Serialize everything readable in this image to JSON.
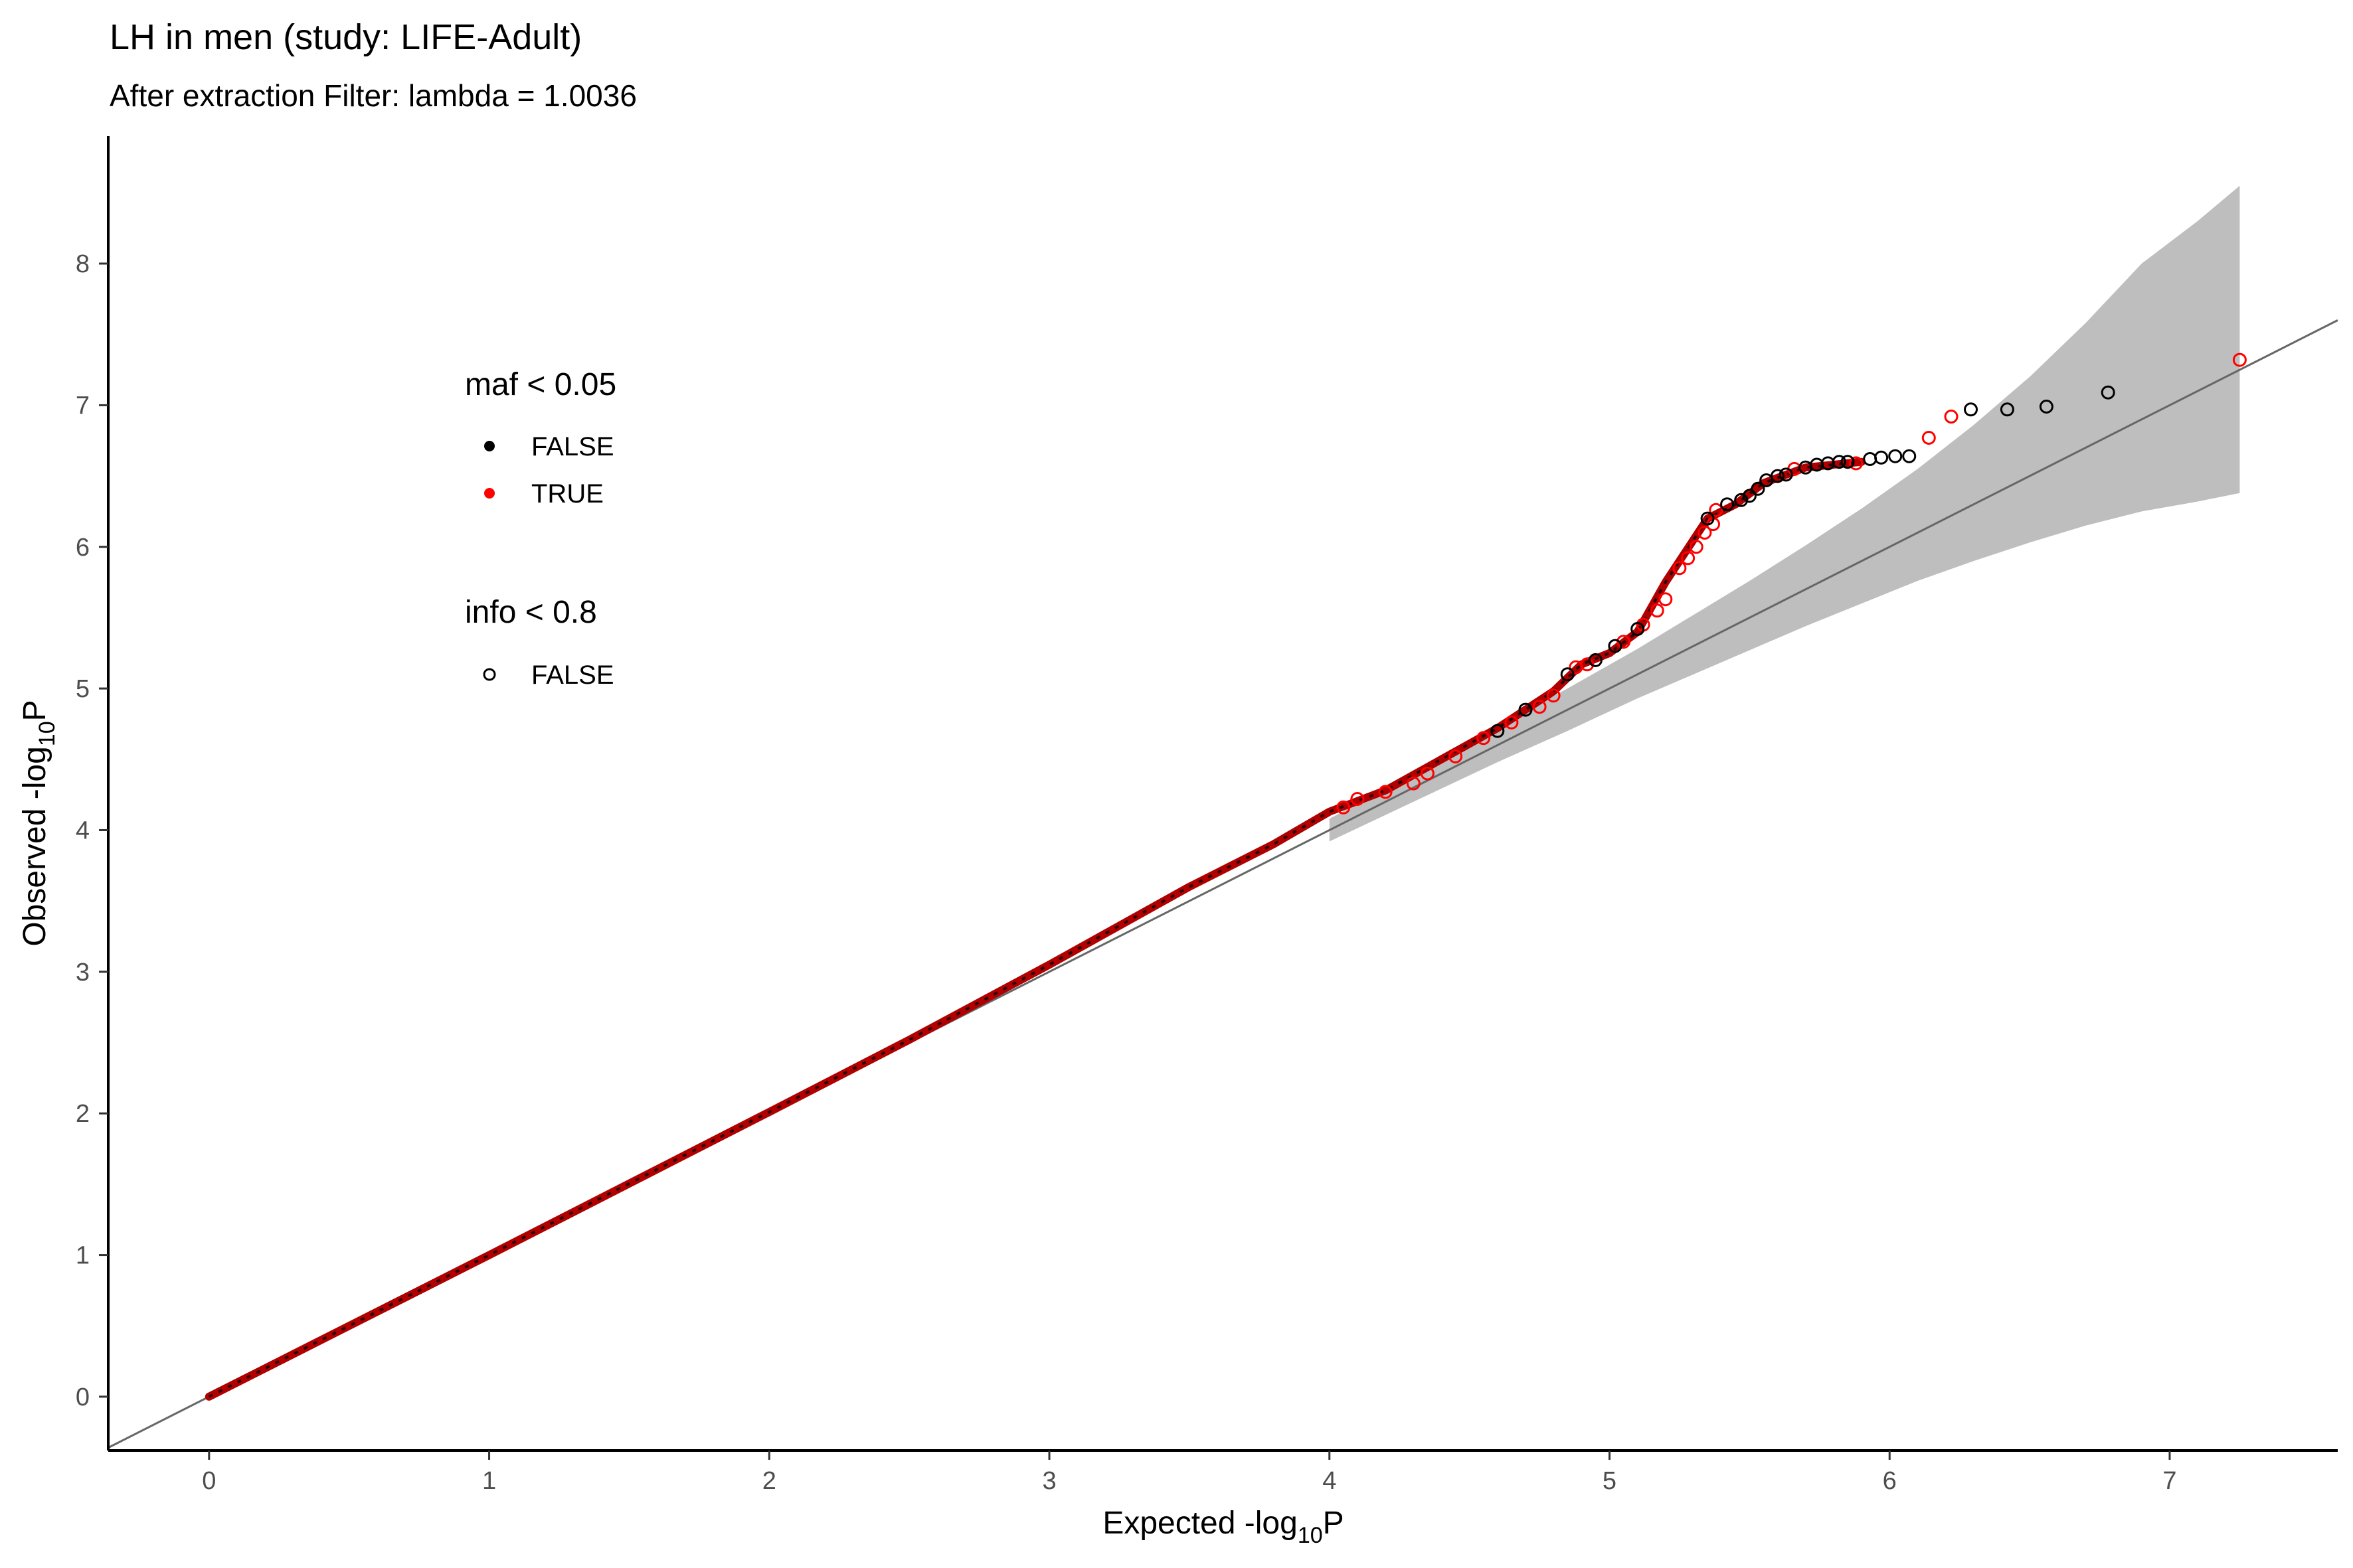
{
  "chart_data": {
    "type": "scatter",
    "title": "LH in men (study: LIFE-Adult)",
    "subtitle": "After extraction Filter: lambda =  1.0036",
    "xlabel": "Expected -log10P",
    "xlabel_main": "Expected -log",
    "xlabel_sub": "10",
    "xlabel_tail": "P",
    "ylabel": "Observed -log10P",
    "ylabel_main": "Observed -log",
    "ylabel_sub": "10",
    "ylabel_tail": "P",
    "xlim": [
      -0.36,
      7.6
    ],
    "ylim": [
      -0.38,
      8.9
    ],
    "xticks": [
      0,
      1,
      2,
      3,
      4,
      5,
      6,
      7
    ],
    "yticks": [
      0,
      1,
      2,
      3,
      4,
      5,
      6,
      7,
      8
    ],
    "grid": false,
    "reference_line": {
      "slope": 1.0,
      "intercept": 0.0,
      "color": "#666666"
    },
    "confidence_band": {
      "color": "#bebebe",
      "x": [
        4.0,
        4.3,
        4.6,
        4.85,
        5.1,
        5.3,
        5.5,
        5.7,
        5.9,
        6.1,
        6.3,
        6.5,
        6.7,
        6.9,
        7.1,
        7.25
      ],
      "upper": [
        4.08,
        4.4,
        4.73,
        5.0,
        5.28,
        5.52,
        5.76,
        6.01,
        6.27,
        6.55,
        6.86,
        7.2,
        7.58,
        8.0,
        8.3,
        8.55
      ],
      "lower": [
        3.92,
        4.2,
        4.48,
        4.7,
        4.93,
        5.1,
        5.27,
        5.44,
        5.6,
        5.76,
        5.9,
        6.03,
        6.15,
        6.25,
        6.32,
        6.38
      ]
    },
    "legend": {
      "placement": "top-left inside plot",
      "maf": {
        "title": "maf < 0.05",
        "entries": [
          {
            "label": "FALSE",
            "color": "#000000"
          },
          {
            "label": "TRUE",
            "color": "#ff0000"
          }
        ]
      },
      "info": {
        "title": "info < 0.8",
        "entries": [
          {
            "label": "FALSE",
            "shape": "open circle"
          }
        ]
      }
    },
    "curve_trend": [
      [
        0.0,
        0.0
      ],
      [
        1.0,
        1.0
      ],
      [
        2.0,
        2.01
      ],
      [
        2.5,
        2.52
      ],
      [
        3.0,
        3.05
      ],
      [
        3.5,
        3.6
      ],
      [
        3.8,
        3.9
      ],
      [
        4.0,
        4.13
      ],
      [
        4.2,
        4.28
      ],
      [
        4.4,
        4.5
      ],
      [
        4.6,
        4.72
      ],
      [
        4.8,
        4.98
      ],
      [
        4.9,
        5.17
      ],
      [
        5.0,
        5.25
      ],
      [
        5.1,
        5.4
      ],
      [
        5.2,
        5.75
      ],
      [
        5.3,
        6.05
      ],
      [
        5.35,
        6.2
      ],
      [
        5.45,
        6.3
      ],
      [
        5.55,
        6.45
      ],
      [
        5.7,
        6.56
      ],
      [
        5.9,
        6.6
      ]
    ],
    "series": [
      {
        "name": "TRUE",
        "color": "#ff0000",
        "points": [
          [
            4.05,
            4.16
          ],
          [
            4.1,
            4.22
          ],
          [
            4.2,
            4.27
          ],
          [
            4.3,
            4.33
          ],
          [
            4.35,
            4.4
          ],
          [
            4.45,
            4.52
          ],
          [
            4.55,
            4.65
          ],
          [
            4.65,
            4.76
          ],
          [
            4.75,
            4.87
          ],
          [
            4.8,
            4.95
          ],
          [
            4.88,
            5.15
          ],
          [
            4.92,
            5.17
          ],
          [
            5.05,
            5.33
          ],
          [
            5.12,
            5.45
          ],
          [
            5.17,
            5.55
          ],
          [
            5.2,
            5.63
          ],
          [
            5.25,
            5.85
          ],
          [
            5.28,
            5.92
          ],
          [
            5.31,
            6.0
          ],
          [
            5.34,
            6.1
          ],
          [
            5.37,
            6.16
          ],
          [
            5.38,
            6.26
          ],
          [
            5.66,
            6.55
          ],
          [
            5.88,
            6.59
          ],
          [
            6.14,
            6.77
          ],
          [
            6.22,
            6.92
          ],
          [
            7.25,
            7.32
          ]
        ]
      },
      {
        "name": "FALSE",
        "color": "#000000",
        "points": [
          [
            4.6,
            4.7
          ],
          [
            4.7,
            4.85
          ],
          [
            4.85,
            5.1
          ],
          [
            4.95,
            5.2
          ],
          [
            5.02,
            5.3
          ],
          [
            5.1,
            5.42
          ],
          [
            5.35,
            6.2
          ],
          [
            5.42,
            6.3
          ],
          [
            5.47,
            6.33
          ],
          [
            5.5,
            6.36
          ],
          [
            5.53,
            6.41
          ],
          [
            5.56,
            6.47
          ],
          [
            5.6,
            6.5
          ],
          [
            5.63,
            6.51
          ],
          [
            5.7,
            6.56
          ],
          [
            5.74,
            6.58
          ],
          [
            5.78,
            6.59
          ],
          [
            5.82,
            6.6
          ],
          [
            5.85,
            6.6
          ],
          [
            5.93,
            6.62
          ],
          [
            5.97,
            6.63
          ],
          [
            6.02,
            6.64
          ],
          [
            6.07,
            6.64
          ],
          [
            6.29,
            6.97
          ],
          [
            6.42,
            6.97
          ],
          [
            6.56,
            6.99
          ],
          [
            6.78,
            7.09
          ]
        ]
      }
    ]
  }
}
